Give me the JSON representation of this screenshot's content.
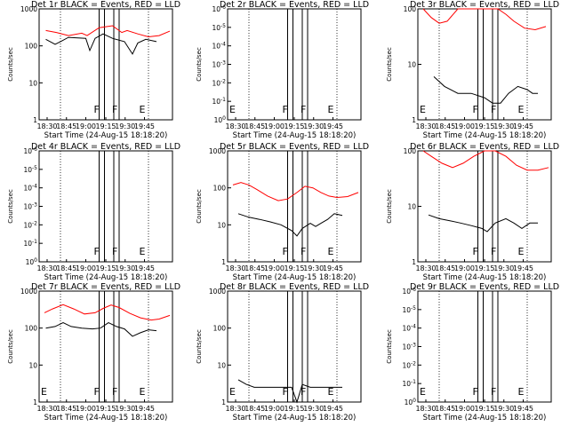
{
  "chart_data": [
    {
      "type": "line",
      "title": "Det 1r  BLACK = Events, RED = LLD",
      "xlabel": "Start Time (24-Aug-15 18:18:20)",
      "ylabel": "Counts/sec",
      "ytick_labels": [
        "1",
        "10",
        "100",
        "1000"
      ],
      "ylim_log10": [
        0,
        3
      ],
      "xtick_labels": [
        "18:30",
        "18:45",
        "19:00",
        "19:15",
        "19:30",
        "19:45"
      ],
      "markers": [
        "F",
        "F",
        "E"
      ],
      "grid": "dotted vertical lines",
      "series": [
        {
          "color": "#000000",
          "values": [
            [
              0.05,
              150
            ],
            [
              0.12,
              110
            ],
            [
              0.16,
              130
            ],
            [
              0.22,
              170
            ],
            [
              0.35,
              160
            ],
            [
              0.38,
              75
            ],
            [
              0.42,
              160
            ],
            [
              0.48,
              210
            ],
            [
              0.55,
              160
            ],
            [
              0.64,
              130
            ],
            [
              0.7,
              60
            ],
            [
              0.74,
              120
            ],
            [
              0.8,
              150
            ],
            [
              0.88,
              130
            ]
          ]
        },
        {
          "color": "#ff0000",
          "values": [
            [
              0.05,
              260
            ],
            [
              0.13,
              230
            ],
            [
              0.22,
              190
            ],
            [
              0.32,
              220
            ],
            [
              0.36,
              190
            ],
            [
              0.45,
              310
            ],
            [
              0.55,
              350
            ],
            [
              0.62,
              230
            ],
            [
              0.66,
              260
            ],
            [
              0.74,
              210
            ],
            [
              0.82,
              175
            ],
            [
              0.9,
              190
            ],
            [
              0.98,
              250
            ]
          ]
        }
      ]
    },
    {
      "type": "line",
      "title": "Det 2r  BLACK = Events, RED = LLD",
      "xlabel": "Start Time (24-Aug-15 18:18:20)",
      "ylabel": "Counts/sec",
      "ytick_labels": [
        "10^0",
        "10^-1",
        "10^-2",
        "10^-3",
        "10^-4",
        "10^-5",
        "10^-6"
      ],
      "xtick_labels": [
        "18:30",
        "18:45",
        "19:00",
        "19:15",
        "19:30",
        "19:45"
      ],
      "markers": [
        "E",
        "F",
        "F",
        "E"
      ],
      "series": []
    },
    {
      "type": "line",
      "title": "Det 3r  BLACK = Events, RED = LLD",
      "xlabel": "Start Time (24-Aug-15 18:18:20)",
      "ylabel": "Counts/sec",
      "ytick_labels": [
        "1",
        "10",
        "100"
      ],
      "ylim_log10": [
        0,
        2
      ],
      "xtick_labels": [
        "18:30",
        "18:45",
        "19:00",
        "19:15",
        "19:30",
        "19:45"
      ],
      "markers": [
        "E",
        "F",
        "F",
        "E"
      ],
      "series": [
        {
          "color": "#000000",
          "values": [
            [
              0.12,
              6
            ],
            [
              0.2,
              4
            ],
            [
              0.3,
              3
            ],
            [
              0.4,
              3
            ],
            [
              0.5,
              2.5
            ],
            [
              0.56,
              2
            ],
            [
              0.62,
              2
            ],
            [
              0.68,
              3
            ],
            [
              0.75,
              4
            ],
            [
              0.82,
              3.5
            ],
            [
              0.86,
              3
            ],
            [
              0.9,
              3
            ]
          ]
        },
        {
          "color": "#ff0000",
          "values": [
            [
              0.04,
              100
            ],
            [
              0.1,
              70
            ],
            [
              0.16,
              55
            ],
            [
              0.22,
              60
            ],
            [
              0.3,
              100
            ],
            [
              0.42,
              100
            ],
            [
              0.5,
              100
            ],
            [
              0.6,
              100
            ],
            [
              0.66,
              80
            ],
            [
              0.72,
              60
            ],
            [
              0.8,
              45
            ],
            [
              0.88,
              42
            ],
            [
              0.96,
              48
            ]
          ]
        }
      ]
    },
    {
      "type": "line",
      "title": "Det 4r  BLACK = Events, RED = LLD",
      "xlabel": "Start Time (24-Aug-15 18:18:20)",
      "ylabel": "Counts/sec",
      "ytick_labels": [
        "10^0",
        "10^-1",
        "10^-2",
        "10^-3",
        "10^-4",
        "10^-5",
        "10^-6"
      ],
      "xtick_labels": [
        "18:30",
        "18:45",
        "19:00",
        "19:15",
        "19:30",
        "19:45"
      ],
      "markers": [
        "F",
        "F",
        "E"
      ],
      "series": []
    },
    {
      "type": "line",
      "title": "Det 5r  BLACK = Events, RED = LLD",
      "xlabel": "Start Time (24-Aug-15 18:18:20)",
      "ylabel": "Counts/sec",
      "ytick_labels": [
        "1",
        "10",
        "100",
        "1000"
      ],
      "ylim_log10": [
        0,
        3
      ],
      "xtick_labels": [
        "18:30",
        "18:45",
        "19:00",
        "19:15",
        "19:30",
        "19:45"
      ],
      "markers": [
        "F",
        "F",
        "E"
      ],
      "series": [
        {
          "color": "#000000",
          "values": [
            [
              0.08,
              20
            ],
            [
              0.16,
              16
            ],
            [
              0.24,
              14
            ],
            [
              0.32,
              12
            ],
            [
              0.4,
              10
            ],
            [
              0.48,
              7
            ],
            [
              0.52,
              5
            ],
            [
              0.56,
              8
            ],
            [
              0.62,
              11
            ],
            [
              0.66,
              9
            ],
            [
              0.7,
              11
            ],
            [
              0.75,
              14
            ],
            [
              0.8,
              20
            ],
            [
              0.86,
              18
            ]
          ]
        },
        {
          "color": "#ff0000",
          "values": [
            [
              0.04,
              120
            ],
            [
              0.1,
              140
            ],
            [
              0.16,
              120
            ],
            [
              0.22,
              90
            ],
            [
              0.3,
              60
            ],
            [
              0.38,
              45
            ],
            [
              0.45,
              50
            ],
            [
              0.52,
              75
            ],
            [
              0.58,
              110
            ],
            [
              0.64,
              100
            ],
            [
              0.7,
              75
            ],
            [
              0.76,
              60
            ],
            [
              0.82,
              55
            ],
            [
              0.9,
              58
            ],
            [
              0.98,
              75
            ]
          ]
        }
      ]
    },
    {
      "type": "line",
      "title": "Det 6r  BLACK = Events, RED = LLD",
      "xlabel": "Start Time (24-Aug-15 18:18:20)",
      "ylabel": "Counts/sec",
      "ytick_labels": [
        "1",
        "10",
        "100"
      ],
      "ylim_log10": [
        0,
        2
      ],
      "xtick_labels": [
        "18:30",
        "18:45",
        "19:00",
        "19:15",
        "19:30",
        "19:45"
      ],
      "markers": [
        "F",
        "F",
        "E"
      ],
      "series": [
        {
          "color": "#000000",
          "values": [
            [
              0.08,
              7
            ],
            [
              0.16,
              6
            ],
            [
              0.24,
              5.5
            ],
            [
              0.32,
              5
            ],
            [
              0.4,
              4.5
            ],
            [
              0.48,
              4
            ],
            [
              0.52,
              3.5
            ],
            [
              0.58,
              5
            ],
            [
              0.66,
              6
            ],
            [
              0.72,
              5
            ],
            [
              0.78,
              4
            ],
            [
              0.84,
              5
            ],
            [
              0.9,
              5
            ]
          ]
        },
        {
          "color": "#ff0000",
          "values": [
            [
              0.04,
              100
            ],
            [
              0.1,
              80
            ],
            [
              0.18,
              60
            ],
            [
              0.26,
              50
            ],
            [
              0.34,
              60
            ],
            [
              0.42,
              80
            ],
            [
              0.5,
              100
            ],
            [
              0.58,
              100
            ],
            [
              0.66,
              80
            ],
            [
              0.74,
              55
            ],
            [
              0.82,
              45
            ],
            [
              0.9,
              45
            ],
            [
              0.98,
              50
            ]
          ]
        }
      ]
    },
    {
      "type": "line",
      "title": "Det 7r  BLACK = Events, RED = LLD",
      "xlabel": "Start Time (24-Aug-15 18:18:20)",
      "ylabel": "Counts/sec",
      "ytick_labels": [
        "1",
        "10",
        "100",
        "1000"
      ],
      "ylim_log10": [
        0,
        3
      ],
      "xtick_labels": [
        "18:30",
        "18:45",
        "19:00",
        "19:15",
        "19:30",
        "19:45"
      ],
      "markers": [
        "E",
        "F",
        "F",
        "E"
      ],
      "series": [
        {
          "color": "#000000",
          "values": [
            [
              0.05,
              100
            ],
            [
              0.12,
              110
            ],
            [
              0.18,
              140
            ],
            [
              0.24,
              110
            ],
            [
              0.32,
              100
            ],
            [
              0.4,
              95
            ],
            [
              0.46,
              100
            ],
            [
              0.52,
              140
            ],
            [
              0.58,
              110
            ],
            [
              0.64,
              95
            ],
            [
              0.7,
              60
            ],
            [
              0.76,
              75
            ],
            [
              0.82,
              90
            ],
            [
              0.88,
              85
            ]
          ]
        },
        {
          "color": "#ff0000",
          "values": [
            [
              0.04,
              260
            ],
            [
              0.1,
              330
            ],
            [
              0.18,
              430
            ],
            [
              0.26,
              330
            ],
            [
              0.34,
              240
            ],
            [
              0.42,
              260
            ],
            [
              0.48,
              340
            ],
            [
              0.54,
              420
            ],
            [
              0.6,
              360
            ],
            [
              0.68,
              250
            ],
            [
              0.76,
              190
            ],
            [
              0.84,
              165
            ],
            [
              0.9,
              175
            ],
            [
              0.98,
              220
            ]
          ]
        }
      ]
    },
    {
      "type": "line",
      "title": "Det 8r  BLACK = Events, RED = LLD",
      "xlabel": "Start Time (24-Aug-15 18:18:20)",
      "ylabel": "Counts/sec",
      "ytick_labels": [
        "1",
        "10",
        "100",
        "1000"
      ],
      "ylim_log10": [
        0,
        3
      ],
      "xtick_labels": [
        "18:30",
        "18:45",
        "19:00",
        "19:15",
        "19:30",
        "19:45"
      ],
      "markers": [
        "E",
        "F",
        "F",
        "E"
      ],
      "series": [
        {
          "color": "#000000",
          "values": [
            [
              0.08,
              4
            ],
            [
              0.14,
              3
            ],
            [
              0.2,
              2.5
            ],
            [
              0.3,
              2.5
            ],
            [
              0.4,
              2.5
            ],
            [
              0.48,
              2.5
            ],
            [
              0.52,
              1
            ],
            [
              0.56,
              3
            ],
            [
              0.62,
              2.5
            ],
            [
              0.7,
              2.5
            ],
            [
              0.76,
              2.5
            ],
            [
              0.82,
              2.5
            ],
            [
              0.86,
              2.5
            ]
          ]
        }
      ]
    },
    {
      "type": "line",
      "title": "Det 9r  BLACK = Events, RED = LLD",
      "xlabel": "Start Time (24-Aug-15 18:18:20)",
      "ylabel": "Counts/sec",
      "ytick_labels": [
        "10^0",
        "10^-1",
        "10^-2",
        "10^-3",
        "10^-4",
        "10^-5",
        "10^-6"
      ],
      "xtick_labels": [
        "18:30",
        "18:45",
        "19:00",
        "19:15",
        "19:30",
        "19:45"
      ],
      "markers": [
        "E",
        "F",
        "F",
        "E"
      ],
      "series": []
    }
  ]
}
